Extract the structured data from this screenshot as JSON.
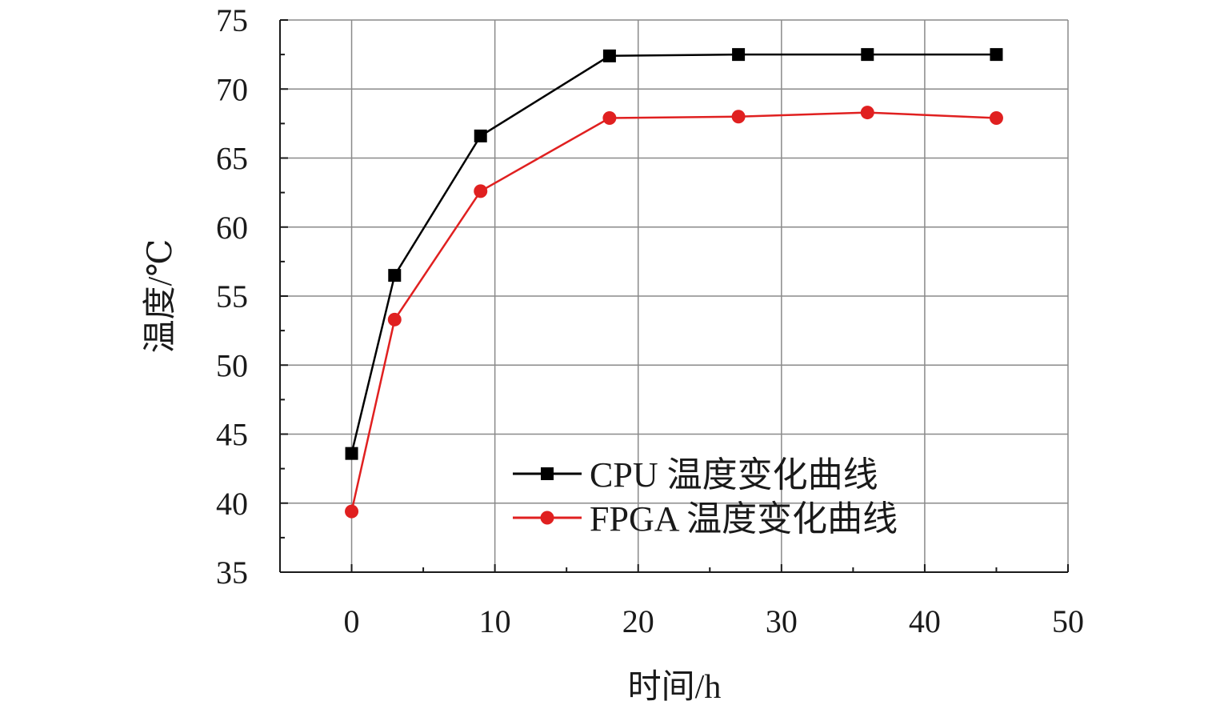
{
  "chart_data": {
    "type": "line",
    "title": "",
    "xlabel": "时间/h",
    "ylabel": "温度/℃",
    "xlim": [
      -5,
      50
    ],
    "ylim": [
      35,
      75
    ],
    "xticks": [
      0,
      10,
      20,
      30,
      40,
      50
    ],
    "yticks": [
      35,
      40,
      45,
      50,
      55,
      60,
      65,
      70,
      75
    ],
    "grid": true,
    "legend_position": "bottom-center",
    "series": [
      {
        "name": "CPU 温度变化曲线",
        "color": "#000000",
        "marker": "square",
        "x": [
          0,
          3,
          9,
          18,
          27,
          36,
          45
        ],
        "y": [
          43.6,
          56.5,
          66.6,
          72.4,
          72.5,
          72.5,
          72.5
        ]
      },
      {
        "name": "FPGA 温度变化曲线",
        "color": "#e02020",
        "marker": "circle",
        "x": [
          0,
          3,
          9,
          18,
          27,
          36,
          45
        ],
        "y": [
          39.4,
          53.3,
          62.6,
          67.9,
          68.0,
          68.3,
          67.9
        ]
      }
    ]
  }
}
